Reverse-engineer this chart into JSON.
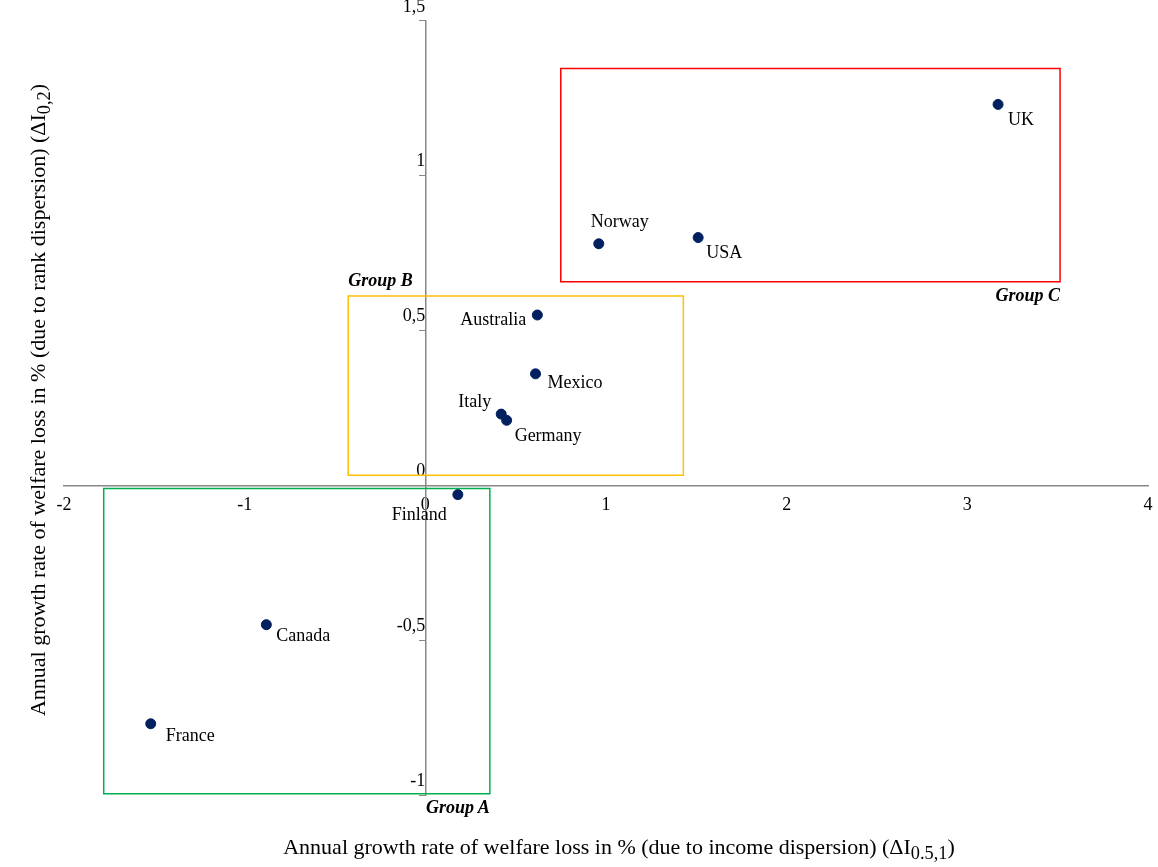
{
  "chart_data": {
    "type": "scatter",
    "xlabel": "Annual growth rate of welfare loss in % (due to income dispersion) (ΔI$_{0.5,1}$)",
    "ylabel": "Annual growth rate of welfare loss in % (due to rank dispersion) (ΔI$_{0,2}$)",
    "series": [
      {
        "color": "#002060",
        "x": [
          -1.52,
          -0.88,
          0.18
        ],
        "values": [
          -0.77,
          -0.45,
          -0.03
        ],
        "value_labels": [
          "France",
          "Canada",
          "Finland"
        ]
      },
      {
        "color": "#002060",
        "x": [
          0.62,
          0.61,
          0.42,
          0.45
        ],
        "values": [
          0.55,
          0.36,
          0.23,
          0.21
        ],
        "value_labels": [
          "Australia",
          "Mexico",
          "Italy",
          "Germany"
        ]
      },
      {
        "color": "#002060",
        "x": [
          0.96,
          1.51,
          3.17
        ],
        "values": [
          0.78,
          0.8,
          1.23
        ],
        "value_labels": [
          "Norway",
          "USA",
          "UK"
        ]
      }
    ],
    "xlim": [
      -2,
      4
    ],
    "xticks": [
      -2,
      -1,
      0,
      1,
      2,
      3,
      4
    ],
    "ylim": [
      -1,
      1.5
    ],
    "yticks": [
      -1,
      {
        "value": -0.5,
        "label": "-0,5"
      },
      0,
      {
        "value": 0.5,
        "label": "0,5"
      },
      1,
      {
        "value": 1.5,
        "label": "1,5"
      }
    ],
    "annotations": [
      "Group A",
      "Group B",
      "Group C"
    ],
    "grid": false,
    "legend": false,
    "marker": "circle"
  }
}
